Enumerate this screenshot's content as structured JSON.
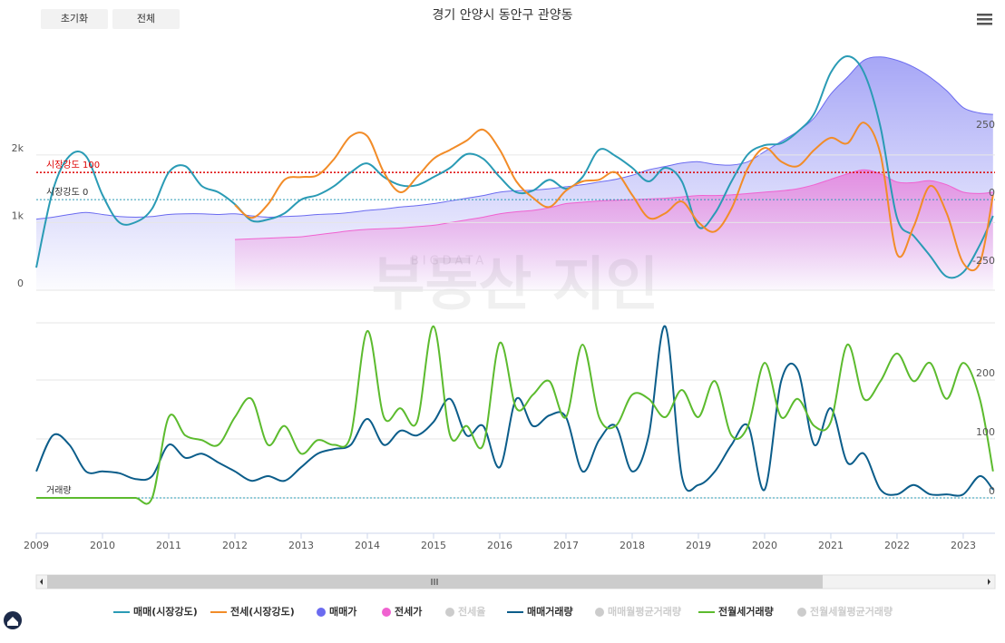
{
  "buttons": [
    "초기화",
    "전체"
  ],
  "watermark": {
    "small": "BIGDATA",
    "large": "부동산 지인"
  },
  "chart_data": [
    {
      "type": "line",
      "title": "경기 안양시 동안구 관양동",
      "x": [
        2009,
        2009.25,
        2009.5,
        2009.75,
        2010,
        2010.25,
        2010.5,
        2010.75,
        2011,
        2011.25,
        2011.5,
        2011.75,
        2012,
        2012.25,
        2012.5,
        2012.75,
        2013,
        2013.25,
        2013.5,
        2013.75,
        2014,
        2014.25,
        2014.5,
        2014.75,
        2015,
        2015.25,
        2015.5,
        2015.75,
        2016,
        2016.25,
        2016.5,
        2016.75,
        2017,
        2017.25,
        2017.5,
        2017.75,
        2018,
        2018.25,
        2018.5,
        2018.75,
        2019,
        2019.25,
        2019.5,
        2019.75,
        2020,
        2020.25,
        2020.5,
        2020.75,
        2021,
        2021.25,
        2021.5,
        2021.75,
        2022,
        2022.25,
        2022.5,
        2022.75,
        2023,
        2023.25,
        2023.45
      ],
      "xlim": [
        2009,
        2023.48
      ],
      "ylim": [
        0,
        3500
      ],
      "yticks": [
        0,
        {
          "value": 1000,
          "label": "1k"
        },
        {
          "value": 2000,
          "label": "2k"
        }
      ],
      "y2lim": [
        -333,
        537
      ],
      "y2ticks": [
        -250,
        0,
        250
      ],
      "grid": true,
      "annotations": [
        {
          "text": "시장강도 100",
          "y2": 100,
          "color": "#dd0000"
        },
        {
          "text": "시장강도 0",
          "y2": 0,
          "color": "#2a9bb5"
        }
      ],
      "series": [
        {
          "name": "매매(시장강도)",
          "type": "line",
          "axis": "y2",
          "color": "#2a9bb5",
          "values": [
            -250,
            33,
            160,
            160,
            17,
            -83,
            -83,
            -33,
            100,
            123,
            50,
            27,
            -17,
            -77,
            -73,
            -50,
            0,
            17,
            50,
            100,
            133,
            83,
            53,
            53,
            83,
            117,
            167,
            150,
            83,
            27,
            33,
            73,
            40,
            83,
            183,
            160,
            117,
            67,
            117,
            67,
            -100,
            -50,
            67,
            167,
            200,
            207,
            250,
            317,
            467,
            527,
            467,
            267,
            -67,
            -133,
            -207,
            -283,
            -267,
            -167,
            -60
          ]
        },
        {
          "name": "전세(시장강도)",
          "type": "line",
          "axis": "y2",
          "color": "#f28c28",
          "values": [
            null,
            null,
            null,
            null,
            null,
            null,
            null,
            null,
            null,
            null,
            null,
            null,
            -20,
            -67,
            -17,
            73,
            83,
            90,
            150,
            233,
            233,
            100,
            27,
            83,
            150,
            183,
            217,
            257,
            183,
            67,
            7,
            -27,
            33,
            67,
            73,
            100,
            17,
            -67,
            -50,
            -7,
            -83,
            -117,
            -33,
            117,
            190,
            140,
            123,
            183,
            227,
            207,
            283,
            167,
            -200,
            -100,
            50,
            -50,
            -233,
            -233,
            17
          ]
        },
        {
          "name": "매매가",
          "type": "area",
          "color": "#6b6bf0",
          "values": [
            1050,
            1080,
            1120,
            1150,
            1120,
            1090,
            1080,
            1090,
            1120,
            1130,
            1130,
            1120,
            1130,
            1100,
            1080,
            1090,
            1100,
            1120,
            1130,
            1150,
            1180,
            1200,
            1230,
            1250,
            1280,
            1320,
            1360,
            1400,
            1450,
            1470,
            1480,
            1500,
            1530,
            1560,
            1600,
            1640,
            1700,
            1780,
            1830,
            1880,
            1900,
            1860,
            1850,
            1900,
            2050,
            2200,
            2350,
            2550,
            2900,
            3150,
            3400,
            3450,
            3400,
            3300,
            3150,
            2950,
            2700,
            2620,
            2600
          ]
        },
        {
          "name": "전세가",
          "type": "area",
          "color": "#f062d0",
          "values": [
            null,
            null,
            null,
            null,
            null,
            null,
            null,
            null,
            null,
            null,
            null,
            null,
            750,
            760,
            770,
            780,
            790,
            820,
            850,
            880,
            900,
            910,
            920,
            940,
            960,
            1000,
            1040,
            1080,
            1130,
            1160,
            1180,
            1220,
            1280,
            1300,
            1320,
            1330,
            1340,
            1350,
            1360,
            1380,
            1400,
            1400,
            1410,
            1430,
            1450,
            1470,
            1500,
            1560,
            1640,
            1720,
            1780,
            1720,
            1600,
            1590,
            1620,
            1560,
            1450,
            1430,
            1450
          ]
        },
        {
          "name": "전세율",
          "color": "#cccccc",
          "visible": false
        }
      ]
    },
    {
      "type": "line",
      "x": [
        2009,
        2009.25,
        2009.5,
        2009.75,
        2010,
        2010.25,
        2010.5,
        2010.75,
        2011,
        2011.25,
        2011.5,
        2011.75,
        2012,
        2012.25,
        2012.5,
        2012.75,
        2013,
        2013.25,
        2013.5,
        2013.75,
        2014,
        2014.25,
        2014.5,
        2014.75,
        2015,
        2015.25,
        2015.5,
        2015.75,
        2016,
        2016.25,
        2016.5,
        2016.75,
        2017,
        2017.25,
        2017.5,
        2017.75,
        2018,
        2018.25,
        2018.5,
        2018.75,
        2019,
        2019.25,
        2019.5,
        2019.75,
        2020,
        2020.25,
        2020.5,
        2020.75,
        2021,
        2021.25,
        2021.5,
        2021.75,
        2022,
        2022.25,
        2022.5,
        2022.75,
        2023,
        2023.25,
        2023.45
      ],
      "xlim": [
        2009,
        2023.48
      ],
      "xticks": [
        2009,
        2010,
        2011,
        2012,
        2013,
        2014,
        2015,
        2016,
        2017,
        2018,
        2019,
        2020,
        2021,
        2022,
        2023
      ],
      "ylim": [
        0,
        300
      ],
      "yticks": [
        0,
        100,
        200
      ],
      "grid": true,
      "annotations": [
        {
          "text": "거래량",
          "y": 0,
          "color": "#2a9bb5"
        }
      ],
      "series": [
        {
          "name": "매매거래량",
          "type": "line",
          "color": "#0b5d8a",
          "values": [
            45,
            106,
            90,
            45,
            45,
            42,
            32,
            37,
            90,
            68,
            75,
            60,
            45,
            29,
            37,
            29,
            52,
            75,
            83,
            90,
            134,
            90,
            114,
            106,
            129,
            168,
            106,
            122,
            52,
            168,
            122,
            140,
            137,
            45,
            98,
            122,
            45,
            106,
            291,
            37,
            22,
            45,
            90,
            122,
            14,
            198,
            217,
            90,
            152,
            60,
            75,
            14,
            6,
            22,
            6,
            6,
            6,
            37,
            14
          ]
        },
        {
          "name": "매매월평균거래량",
          "color": "#cccccc",
          "visible": false
        },
        {
          "name": "전월세거래량",
          "type": "line",
          "color": "#5cbb2e",
          "values": [
            0,
            0,
            0,
            0,
            0,
            0,
            0,
            0,
            137,
            106,
            98,
            90,
            137,
            168,
            90,
            122,
            75,
            98,
            90,
            106,
            283,
            137,
            152,
            129,
            291,
            106,
            122,
            90,
            263,
            152,
            175,
            198,
            137,
            260,
            137,
            122,
            175,
            168,
            137,
            183,
            137,
            198,
            106,
            122,
            229,
            137,
            168,
            122,
            129,
            260,
            168,
            198,
            245,
            198,
            229,
            168,
            229,
            168,
            45
          ]
        },
        {
          "name": "전월세월평균거래량",
          "color": "#cccccc",
          "visible": false
        }
      ]
    }
  ]
}
